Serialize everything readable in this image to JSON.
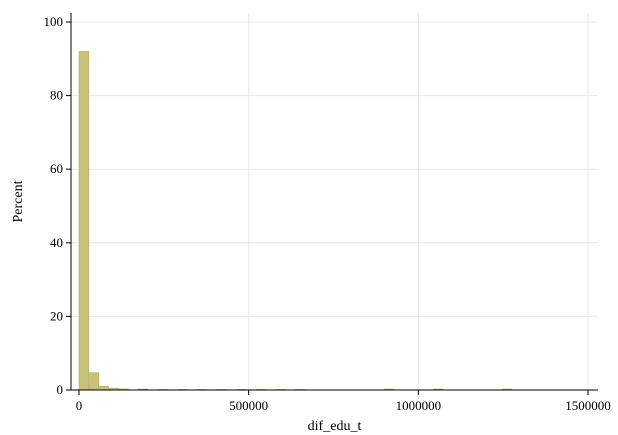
{
  "chart_data": {
    "type": "bar",
    "title": "",
    "xlabel": "dif_edu_t",
    "ylabel": "Percent",
    "xlim": [
      0,
      1500000
    ],
    "ylim": [
      0,
      100
    ],
    "xticks": [
      0,
      500000,
      1000000,
      1500000
    ],
    "xtick_labels": [
      "0",
      "500000",
      "1000000",
      "1500000"
    ],
    "yticks": [
      0,
      20,
      40,
      60,
      80,
      100
    ],
    "ytick_labels": [
      "0",
      "20",
      "40",
      "60",
      "80",
      "100"
    ],
    "grid": true,
    "bar_color": "#c8c17a",
    "bar_edge_color": "#b3ab5c",
    "bin_width": 29000,
    "bins": [
      {
        "x": 0,
        "value": 92
      },
      {
        "x": 29000,
        "value": 4.7
      },
      {
        "x": 58000,
        "value": 1.0
      },
      {
        "x": 87000,
        "value": 0.5
      },
      {
        "x": 116000,
        "value": 0.3
      },
      {
        "x": 174000,
        "value": 0.25
      },
      {
        "x": 232000,
        "value": 0.15
      },
      {
        "x": 290000,
        "value": 0.15
      },
      {
        "x": 348000,
        "value": 0.15
      },
      {
        "x": 406000,
        "value": 0.15
      },
      {
        "x": 464000,
        "value": 0.15
      },
      {
        "x": 522000,
        "value": 0.15
      },
      {
        "x": 580000,
        "value": 0.15
      },
      {
        "x": 638000,
        "value": 0.15
      },
      {
        "x": 899000,
        "value": 0.25
      },
      {
        "x": 1044000,
        "value": 0.25
      },
      {
        "x": 1247000,
        "value": 0.25
      }
    ]
  }
}
